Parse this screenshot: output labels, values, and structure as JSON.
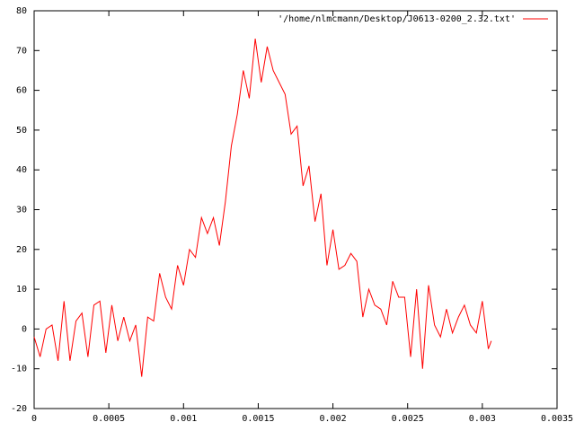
{
  "chart_data": {
    "type": "line",
    "x": [
      0,
      4e-05,
      8e-05,
      0.00012,
      0.00016,
      0.0002,
      0.00024,
      0.00028,
      0.00032,
      0.00036,
      0.0004,
      0.00044,
      0.00048,
      0.00052,
      0.00056,
      0.0006,
      0.00064,
      0.00068,
      0.00072,
      0.00076,
      0.0008,
      0.00084,
      0.00088,
      0.00092,
      0.00096,
      0.001,
      0.00104,
      0.00108,
      0.00112,
      0.00116,
      0.0012,
      0.00124,
      0.00128,
      0.00132,
      0.00136,
      0.0014,
      0.00144,
      0.00148,
      0.00152,
      0.00156,
      0.0016,
      0.00164,
      0.00168,
      0.00172,
      0.00176,
      0.0018,
      0.00184,
      0.00188,
      0.00192,
      0.00196,
      0.002,
      0.00204,
      0.00208,
      0.00212,
      0.00216,
      0.0022,
      0.00224,
      0.00228,
      0.00232,
      0.00236,
      0.0024,
      0.00244,
      0.00248,
      0.00252,
      0.00256,
      0.0026,
      0.00264,
      0.00268,
      0.00272,
      0.00276,
      0.0028,
      0.00284,
      0.00288,
      0.00292,
      0.00296,
      0.003,
      0.00304,
      0.00306
    ],
    "series": [
      {
        "name": "'/home/nlmcmann/Desktop/J0613-0200_2.32.txt'",
        "color": "#ff0000",
        "values": [
          -2,
          -7,
          0,
          1,
          -8,
          7,
          -8,
          2,
          4,
          -7,
          6,
          7,
          -6,
          6,
          -3,
          3,
          -3,
          1,
          -12,
          3,
          2,
          14,
          8,
          5,
          16,
          11,
          20,
          18,
          28,
          24,
          28,
          21,
          32,
          46,
          54,
          65,
          58,
          73,
          62,
          71,
          65,
          62,
          59,
          49,
          51,
          36,
          41,
          27,
          34,
          16,
          25,
          15,
          16,
          19,
          17,
          3,
          10,
          6,
          5,
          1,
          12,
          8,
          8,
          -7,
          10,
          -10,
          11,
          1,
          -2,
          5,
          -1,
          3,
          6,
          1,
          -1,
          7,
          -5,
          -3
        ]
      }
    ],
    "xlim": [
      0,
      0.0035
    ],
    "xticks": [
      0,
      0.0005,
      0.001,
      0.0015,
      0.002,
      0.0025,
      0.003,
      0.0035
    ],
    "ylim": [
      -20,
      80
    ],
    "yticks": [
      -20,
      -10,
      0,
      10,
      20,
      30,
      40,
      50,
      60,
      70,
      80
    ],
    "legend": "top-right"
  }
}
